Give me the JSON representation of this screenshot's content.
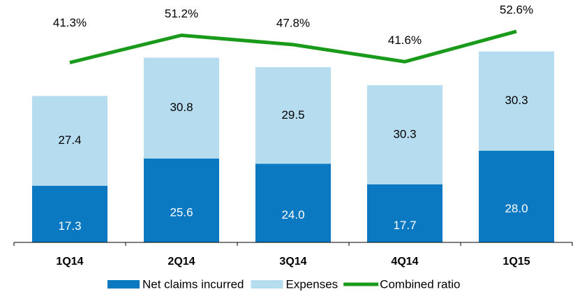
{
  "chart_data": {
    "type": "stacked-bar-line",
    "categories": [
      "1Q14",
      "2Q14",
      "3Q14",
      "4Q14",
      "1Q15"
    ],
    "series": [
      {
        "name": "Net claims incurred",
        "color": "#0b79c2",
        "values": [
          17.3,
          25.6,
          24.0,
          17.7,
          28.0
        ],
        "value_labels": [
          "17.3",
          "25.6",
          "24.0",
          "17.7",
          "28.0"
        ]
      },
      {
        "name": "Expenses",
        "color": "#b6dcef",
        "values": [
          27.4,
          30.8,
          29.5,
          30.3,
          30.3
        ],
        "value_labels": [
          "27.4",
          "30.8",
          "29.5",
          "30.3",
          "30.3"
        ]
      },
      {
        "name": "Combined ratio",
        "color": "#1a9a1a",
        "axis": "y2",
        "values": [
          41.3,
          51.2,
          47.8,
          41.6,
          52.6
        ],
        "value_labels": [
          "41.3%",
          "51.2%",
          "47.8%",
          "41.6%",
          "52.6%"
        ]
      }
    ],
    "ylim": [
      0,
      74
    ],
    "y2lim": [
      -24,
      64
    ]
  }
}
